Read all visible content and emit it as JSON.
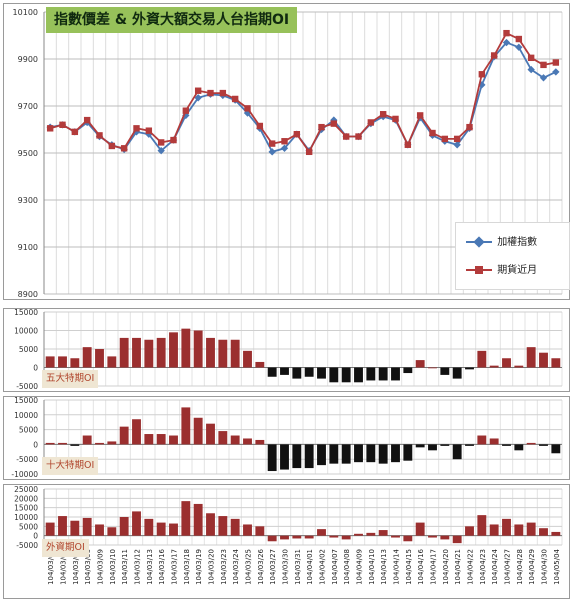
{
  "chart_data": [
    {
      "type": "line",
      "title": "指數價差 & 外資大額交易人台指期OI",
      "xlabel": "",
      "ylabel": "",
      "ylim": [
        8900,
        10100
      ],
      "yticks": [
        "8900",
        "9100",
        "9300",
        "9500",
        "9700",
        "9900",
        "10100"
      ],
      "grid": true,
      "legend": "bottom-right",
      "categories": [
        "104/03/03",
        "104/03/04",
        "104/03/05",
        "104/03/06",
        "104/03/09",
        "104/03/10",
        "104/03/11",
        "104/03/12",
        "104/03/13",
        "104/03/16",
        "104/03/17",
        "104/03/18",
        "104/03/19",
        "104/03/20",
        "104/03/23",
        "104/03/24",
        "104/03/25",
        "104/03/26",
        "104/03/27",
        "104/03/30",
        "104/03/31",
        "104/04/01",
        "104/04/02",
        "104/04/07",
        "104/04/08",
        "104/04/09",
        "104/04/10",
        "104/04/13",
        "104/04/14",
        "104/04/15",
        "104/04/16",
        "104/04/17",
        "104/04/20",
        "104/04/21",
        "104/04/22",
        "104/04/23",
        "104/04/24",
        "104/04/27",
        "104/04/28",
        "104/04/29",
        "104/04/30",
        "104/05/04"
      ],
      "series": [
        {
          "name": "加權指數",
          "color": "#4a78b5",
          "marker": "diamond",
          "values": [
            9610,
            9620,
            9590,
            9630,
            9570,
            9535,
            9515,
            9590,
            9580,
            9510,
            9555,
            9660,
            9735,
            9750,
            9745,
            9725,
            9670,
            9605,
            9505,
            9520,
            9580,
            9510,
            9600,
            9640,
            9570,
            9570,
            9625,
            9655,
            9640,
            9535,
            9650,
            9575,
            9550,
            9535,
            9605,
            9790,
            9910,
            9970,
            9950,
            9855,
            9820,
            9845
          ]
        },
        {
          "name": "期貨近月",
          "color": "#b33b3b",
          "marker": "square",
          "values": [
            9605,
            9620,
            9590,
            9640,
            9575,
            9530,
            9520,
            9605,
            9595,
            9545,
            9555,
            9680,
            9765,
            9755,
            9755,
            9730,
            9690,
            9615,
            9540,
            9550,
            9580,
            9505,
            9610,
            9625,
            9570,
            9570,
            9630,
            9665,
            9645,
            9535,
            9660,
            9585,
            9560,
            9560,
            9610,
            9835,
            9915,
            10010,
            9985,
            9905,
            9875,
            9885
          ]
        }
      ]
    },
    {
      "type": "bar",
      "title": "五大特期OI",
      "ylim": [
        -5000,
        15000
      ],
      "yticks": [
        "15000",
        "10000",
        "5000",
        "0",
        "-5000"
      ],
      "values": [
        3000,
        3000,
        2500,
        5500,
        5000,
        3000,
        8000,
        8000,
        7500,
        8000,
        9500,
        10500,
        10000,
        8000,
        7500,
        7500,
        4500,
        1500,
        -2500,
        -2000,
        -3000,
        -2500,
        -3000,
        -4000,
        -4000,
        -4000,
        -3500,
        -3500,
        -3500,
        -1500,
        2000,
        0,
        -2000,
        -3000,
        -500,
        4500,
        500,
        2500,
        500,
        5500,
        4000,
        2500
      ]
    },
    {
      "type": "bar",
      "title": "十大特期OI",
      "ylim": [
        -10000,
        15000
      ],
      "yticks": [
        "15000",
        "10000",
        "5000",
        "0",
        "-5000",
        "-10000"
      ],
      "values": [
        500,
        500,
        -500,
        3000,
        500,
        1000,
        6000,
        8500,
        3500,
        3500,
        3000,
        12500,
        9000,
        7000,
        4500,
        3000,
        2000,
        1500,
        -9000,
        -8500,
        -8000,
        -8000,
        -7000,
        -6500,
        -6500,
        -6000,
        -6000,
        -6500,
        -6000,
        -5500,
        -1000,
        -2000,
        -500,
        -5000,
        -500,
        3000,
        2000,
        -500,
        -2000,
        500,
        -500,
        -3000
      ]
    },
    {
      "type": "bar",
      "title": "外資期OI",
      "ylim": [
        -5000,
        25000
      ],
      "yticks": [
        "25000",
        "20000",
        "15000",
        "10000",
        "5000",
        "0",
        "-5000"
      ],
      "values": [
        7000,
        10500,
        8000,
        9500,
        6000,
        4500,
        10000,
        13000,
        9000,
        7000,
        6500,
        18500,
        17000,
        12000,
        10500,
        9000,
        6000,
        5000,
        -3000,
        -2000,
        -1500,
        -1500,
        3500,
        -1000,
        -2000,
        1000,
        1500,
        3000,
        -1000,
        -3000,
        7000,
        -1000,
        -2000,
        -4000,
        5000,
        11000,
        6000,
        9000,
        6000,
        7000,
        4000,
        2000
      ]
    }
  ]
}
